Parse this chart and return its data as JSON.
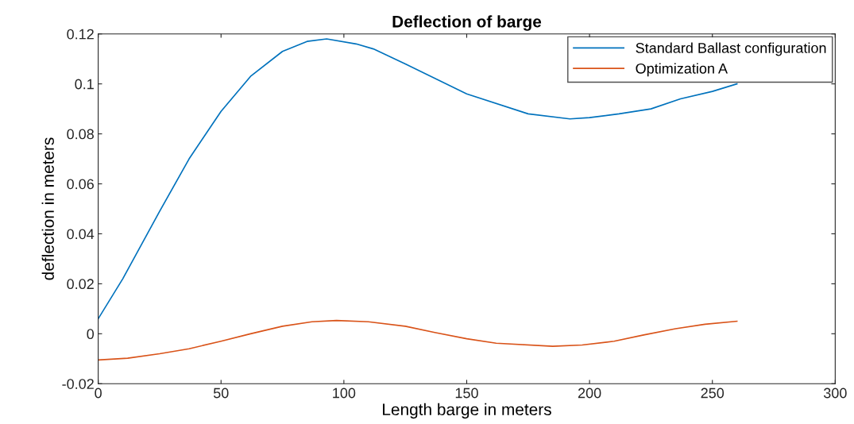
{
  "chart_data": {
    "type": "line",
    "title": "Deflection of barge",
    "xlabel": "Length barge in meters",
    "ylabel": "deflection in meters",
    "xlim": [
      0,
      300
    ],
    "xticks": [
      0,
      50,
      100,
      150,
      200,
      250,
      300
    ],
    "ylim": [
      -0.02,
      0.12
    ],
    "yticks": [
      {
        "value": -0.02,
        "label": "-0.02"
      },
      0,
      0.02,
      0.04,
      0.06,
      0.08,
      0.1,
      0.12
    ],
    "grid": false,
    "legend": "top right",
    "marker": "none",
    "line_style": "solid",
    "series": [
      {
        "name": "Standard Ballast configuration",
        "color": "#0072bd",
        "x": [
          0,
          10,
          25,
          37,
          50,
          62,
          75,
          85,
          93,
          105,
          112,
          125,
          150,
          175,
          192,
          200,
          212,
          225,
          237,
          250,
          260
        ],
        "values": [
          0.006,
          0.022,
          0.049,
          0.07,
          0.089,
          0.103,
          0.113,
          0.117,
          0.118,
          0.116,
          0.114,
          0.108,
          0.096,
          0.088,
          0.086,
          0.0865,
          0.088,
          0.09,
          0.094,
          0.097,
          0.1
        ]
      },
      {
        "name": "Optimization A",
        "color": "#d95319",
        "x": [
          0,
          12,
          25,
          37,
          50,
          62,
          75,
          87,
          97,
          110,
          125,
          137,
          150,
          162,
          185,
          197,
          210,
          222,
          235,
          247,
          260
        ],
        "values": [
          -0.0105,
          -0.0098,
          -0.008,
          -0.006,
          -0.003,
          0.0,
          0.003,
          0.0048,
          0.0053,
          0.0048,
          0.003,
          0.0005,
          -0.002,
          -0.0038,
          -0.005,
          -0.0045,
          -0.003,
          -0.0005,
          0.002,
          0.0038,
          0.005
        ]
      }
    ]
  }
}
